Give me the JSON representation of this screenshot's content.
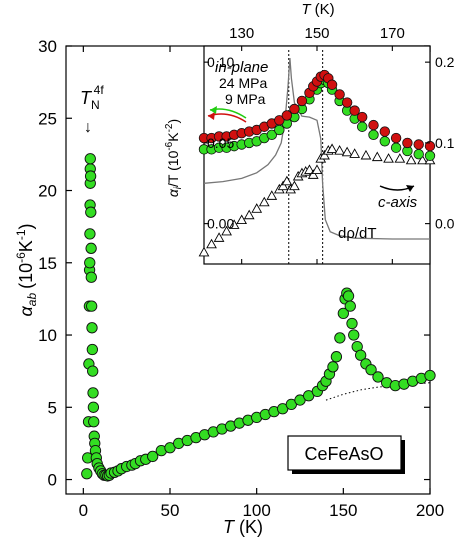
{
  "chart_data": [
    {
      "type": "scatter",
      "xlabel": "T (K)",
      "ylabel_main": "α",
      "ylabel_sub": "ab",
      "ylabel_unit": "(10",
      "ylabel_exp": "-6",
      "ylabel_tail": "K",
      "ylabel_exp2": "-1",
      "ylabel_close": ")",
      "xlim": [
        -10,
        200
      ],
      "ylim": [
        -1,
        30
      ],
      "xticks": [
        0,
        50,
        100,
        150,
        200
      ],
      "yticks": [
        0,
        5,
        10,
        15,
        20,
        25,
        30
      ],
      "marker_color": "#33dd22",
      "marker_edge": "#111111",
      "annotation": {
        "main": "T",
        "sub": "N",
        "sup": "4f",
        "arrow": "↓",
        "x": 4,
        "y": 22.2
      },
      "legend_box": "CeFeAsO",
      "series": [
        {
          "points": [
            [
              2.0,
              0.4
            ],
            [
              2.5,
              1.5
            ],
            [
              3.0,
              4.0
            ],
            [
              3.2,
              8.0
            ],
            [
              3.5,
              12.0
            ],
            [
              3.6,
              14.5
            ],
            [
              3.7,
              15.0
            ],
            [
              3.8,
              17.0
            ],
            [
              3.9,
              19.0
            ],
            [
              4.0,
              20.5
            ],
            [
              4.0,
              21.5
            ],
            [
              4.0,
              22.2
            ],
            [
              4.2,
              21.0
            ],
            [
              4.3,
              18.5
            ],
            [
              4.5,
              16.0
            ],
            [
              4.6,
              14.0
            ],
            [
              4.8,
              12.0
            ],
            [
              5.0,
              10.5
            ],
            [
              5.2,
              9.0
            ],
            [
              5.4,
              7.5
            ],
            [
              5.6,
              6.0
            ],
            [
              5.8,
              5.0
            ],
            [
              6.0,
              4.0
            ],
            [
              6.3,
              3.0
            ],
            [
              6.6,
              2.5
            ],
            [
              7.0,
              2.0
            ],
            [
              7.5,
              1.5
            ],
            [
              8.0,
              1.1
            ],
            [
              9.0,
              0.8
            ],
            [
              10.0,
              0.6
            ],
            [
              11.0,
              0.4
            ],
            [
              12.0,
              0.3
            ],
            [
              13.0,
              0.3
            ],
            [
              14.0,
              0.25
            ],
            [
              15.0,
              0.3
            ],
            [
              16.0,
              0.45
            ],
            [
              18.0,
              0.5
            ],
            [
              20.0,
              0.6
            ],
            [
              22.0,
              0.75
            ],
            [
              25.0,
              0.9
            ],
            [
              28.0,
              1.0
            ],
            [
              30.0,
              1.1
            ],
            [
              33.0,
              1.3
            ],
            [
              36.0,
              1.4
            ],
            [
              40.0,
              1.6
            ],
            [
              45.0,
              2.0
            ],
            [
              50.0,
              2.2
            ],
            [
              55.0,
              2.5
            ],
            [
              60.0,
              2.7
            ],
            [
              65.0,
              2.9
            ],
            [
              70.0,
              3.1
            ],
            [
              75.0,
              3.3
            ],
            [
              80.0,
              3.5
            ],
            [
              85.0,
              3.7
            ],
            [
              90.0,
              3.9
            ],
            [
              95.0,
              4.1
            ],
            [
              100.0,
              4.3
            ],
            [
              105.0,
              4.5
            ],
            [
              110.0,
              4.7
            ],
            [
              115.0,
              4.9
            ],
            [
              120.0,
              5.2
            ],
            [
              125.0,
              5.5
            ],
            [
              130.0,
              5.8
            ],
            [
              135.0,
              6.1
            ],
            [
              138.0,
              6.5
            ],
            [
              140.0,
              6.8
            ],
            [
              142.0,
              7.3
            ],
            [
              144.0,
              7.8
            ],
            [
              146.0,
              8.5
            ],
            [
              148.0,
              9.8
            ],
            [
              150.0,
              11.5
            ],
            [
              151.0,
              12.5
            ],
            [
              152.0,
              12.9
            ],
            [
              153.0,
              12.7
            ],
            [
              154.0,
              12.0
            ],
            [
              155.0,
              10.8
            ],
            [
              156.0,
              10.0
            ],
            [
              158.0,
              9.2
            ],
            [
              160.0,
              8.6
            ],
            [
              163.0,
              8.0
            ],
            [
              166.0,
              7.6
            ],
            [
              170.0,
              7.1
            ],
            [
              175.0,
              6.7
            ],
            [
              180.0,
              6.5
            ],
            [
              185.0,
              6.6
            ],
            [
              190.0,
              6.8
            ],
            [
              195.0,
              7.0
            ],
            [
              200.0,
              7.2
            ]
          ]
        }
      ],
      "background_curve": [
        [
          140,
          5.5
        ],
        [
          150,
          5.9
        ],
        [
          160,
          6.2
        ],
        [
          170,
          6.4
        ],
        [
          180,
          6.5
        ],
        [
          190,
          6.6
        ],
        [
          200,
          6.7
        ]
      ]
    },
    {
      "type": "scatter",
      "top_xlabel": "T (K)",
      "ylabel_main": "α",
      "ylabel_sub": "i",
      "ylabel_unit": "/T (10",
      "ylabel_exp": "-6",
      "ylabel_tail": "K",
      "ylabel_exp2": "-2",
      "ylabel_close": ")",
      "xlim": [
        120,
        180
      ],
      "ylim": [
        -0.025,
        0.11
      ],
      "y2lim": [
        -0.05,
        0.22
      ],
      "xticks": [
        130,
        150,
        170
      ],
      "yticks": [
        "0.00",
        "0.05",
        "0.10"
      ],
      "y2ticks": [
        "0.0",
        "0.1",
        "0.2"
      ],
      "label_inplane": "in-plane",
      "label_24": "24 MPa",
      "label_9": "9 MPa",
      "label_caxis": "c-axis",
      "label_drho": "dρ/dT",
      "color_24": "#d01010",
      "color_9": "#33dd22",
      "color_triangle": "#ffffff",
      "color_drho": "#777777",
      "vlines": [
        142.5,
        151.5
      ],
      "series": [
        {
          "name": "24 MPa",
          "values": [
            [
              120,
              0.053
            ],
            [
              122,
              0.053
            ],
            [
              124,
              0.054
            ],
            [
              126,
              0.054
            ],
            [
              128,
              0.055
            ],
            [
              130,
              0.056
            ],
            [
              132,
              0.057
            ],
            [
              134,
              0.058
            ],
            [
              136,
              0.06
            ],
            [
              138,
              0.062
            ],
            [
              140,
              0.064
            ],
            [
              142,
              0.067
            ],
            [
              144,
              0.071
            ],
            [
              146,
              0.076
            ],
            [
              148,
              0.081
            ],
            [
              149,
              0.085
            ],
            [
              150,
              0.088
            ],
            [
              151,
              0.091
            ],
            [
              152,
              0.092
            ],
            [
              153,
              0.09
            ],
            [
              154,
              0.086
            ],
            [
              156,
              0.08
            ],
            [
              158,
              0.075
            ],
            [
              160,
              0.07
            ],
            [
              162,
              0.066
            ],
            [
              165,
              0.061
            ],
            [
              168,
              0.057
            ],
            [
              171,
              0.053
            ],
            [
              174,
              0.05
            ],
            [
              177,
              0.049
            ],
            [
              180,
              0.048
            ]
          ]
        },
        {
          "name": "9 MPa",
          "values": [
            [
              120,
              0.046
            ],
            [
              122,
              0.046
            ],
            [
              124,
              0.047
            ],
            [
              126,
              0.047
            ],
            [
              128,
              0.048
            ],
            [
              130,
              0.049
            ],
            [
              132,
              0.05
            ],
            [
              134,
              0.051
            ],
            [
              136,
              0.053
            ],
            [
              138,
              0.055
            ],
            [
              140,
              0.058
            ],
            [
              142,
              0.062
            ],
            [
              144,
              0.066
            ],
            [
              146,
              0.071
            ],
            [
              148,
              0.077
            ],
            [
              150,
              0.083
            ],
            [
              151,
              0.087
            ],
            [
              152,
              0.089
            ],
            [
              153,
              0.087
            ],
            [
              154,
              0.083
            ],
            [
              156,
              0.076
            ],
            [
              158,
              0.07
            ],
            [
              160,
              0.065
            ],
            [
              162,
              0.06
            ],
            [
              165,
              0.055
            ],
            [
              168,
              0.051
            ],
            [
              171,
              0.047
            ],
            [
              174,
              0.045
            ],
            [
              177,
              0.043
            ],
            [
              180,
              0.042
            ]
          ]
        },
        {
          "name": "c-axis",
          "values": [
            [
              120,
              -0.018
            ],
            [
              122,
              -0.013
            ],
            [
              124,
              -0.009
            ],
            [
              126,
              -0.005
            ],
            [
              128,
              -0.001
            ],
            [
              130,
              0.002
            ],
            [
              132,
              0.005
            ],
            [
              134,
              0.009
            ],
            [
              136,
              0.013
            ],
            [
              138,
              0.017
            ],
            [
              140,
              0.021
            ],
            [
              141,
              0.023
            ],
            [
              142,
              0.026
            ],
            [
              143,
              0.021
            ],
            [
              144,
              0.023
            ],
            [
              145,
              0.029
            ],
            [
              146,
              0.031
            ],
            [
              147,
              0.032
            ],
            [
              148,
              0.033
            ],
            [
              149,
              0.03
            ],
            [
              150,
              0.033
            ],
            [
              151,
              0.04
            ],
            [
              152,
              0.042
            ],
            [
              153,
              0.045
            ],
            [
              154,
              0.046
            ],
            [
              156,
              0.045
            ],
            [
              158,
              0.044
            ],
            [
              160,
              0.043
            ],
            [
              163,
              0.042
            ],
            [
              166,
              0.041
            ],
            [
              169,
              0.04
            ],
            [
              172,
              0.04
            ],
            [
              175,
              0.039
            ],
            [
              178,
              0.039
            ],
            [
              180,
              0.039
            ]
          ]
        },
        {
          "name": "dρ/dT",
          "values": [
            [
              120,
              0.05
            ],
            [
              125,
              0.052
            ],
            [
              130,
              0.056
            ],
            [
              134,
              0.063
            ],
            [
              137,
              0.073
            ],
            [
              139,
              0.085
            ],
            [
              140.5,
              0.1
            ],
            [
              141.5,
              0.128
            ],
            [
              142.3,
              0.17
            ],
            [
              142.8,
              0.205
            ],
            [
              143.2,
              0.18
            ],
            [
              144.0,
              0.15
            ],
            [
              146.0,
              0.133
            ],
            [
              148.0,
              0.132
            ],
            [
              150.0,
              0.128
            ],
            [
              151.0,
              0.105
            ],
            [
              151.5,
              0.05
            ],
            [
              152.2,
              0.005
            ],
            [
              153.5,
              -0.01
            ],
            [
              156.0,
              -0.015
            ],
            [
              160.0,
              -0.018
            ],
            [
              170.0,
              -0.019
            ],
            [
              180.0,
              -0.019
            ]
          ]
        }
      ]
    }
  ]
}
